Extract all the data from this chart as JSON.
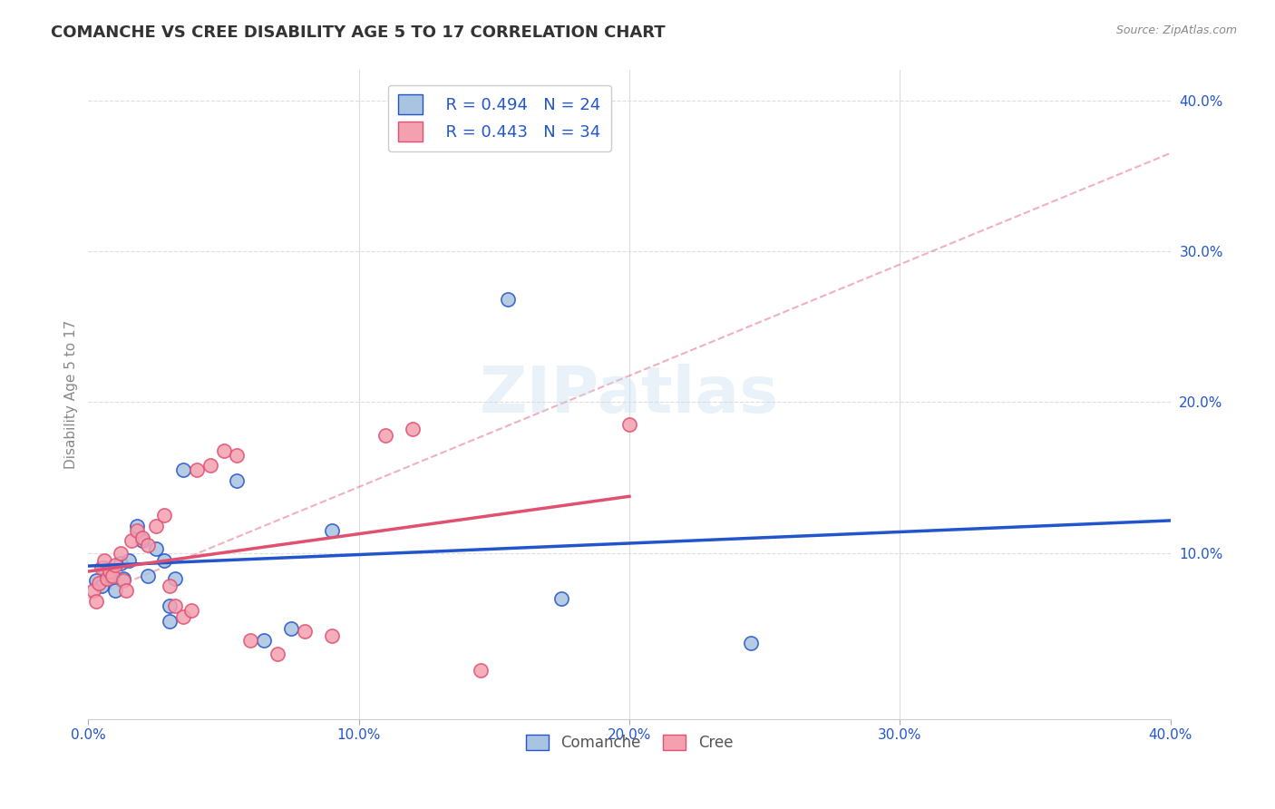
{
  "title": "COMANCHE VS CREE DISABILITY AGE 5 TO 17 CORRELATION CHART",
  "source": "Source: ZipAtlas.com",
  "ylabel": "Disability Age 5 to 17",
  "xmin": 0.0,
  "xmax": 0.4,
  "ymin": -0.01,
  "ymax": 0.42,
  "xticks": [
    0.0,
    0.1,
    0.2,
    0.3,
    0.4
  ],
  "yticks": [
    0.1,
    0.2,
    0.3,
    0.4
  ],
  "xtick_labels": [
    "0.0%",
    "10.0%",
    "20.0%",
    "30.0%",
    "40.0%"
  ],
  "ytick_labels": [
    "10.0%",
    "20.0%",
    "30.0%",
    "40.0%"
  ],
  "comanche_color": "#a8c4e0",
  "cree_color": "#f4a0b0",
  "comanche_line_color": "#2255cc",
  "cree_line_color": "#e05070",
  "legend_r_comanche": "R = 0.494",
  "legend_n_comanche": "N = 24",
  "legend_r_cree": "R = 0.443",
  "legend_n_cree": "N = 34",
  "watermark": "ZIPatlas",
  "comanche_x": [
    0.003,
    0.005,
    0.006,
    0.008,
    0.01,
    0.012,
    0.013,
    0.015,
    0.018,
    0.02,
    0.022,
    0.025,
    0.028,
    0.03,
    0.03,
    0.032,
    0.035,
    0.055,
    0.065,
    0.075,
    0.09,
    0.155,
    0.175,
    0.245
  ],
  "comanche_y": [
    0.082,
    0.078,
    0.09,
    0.085,
    0.075,
    0.093,
    0.083,
    0.095,
    0.118,
    0.108,
    0.085,
    0.103,
    0.095,
    0.065,
    0.055,
    0.083,
    0.155,
    0.148,
    0.042,
    0.05,
    0.115,
    0.268,
    0.07,
    0.04
  ],
  "cree_x": [
    0.002,
    0.003,
    0.004,
    0.005,
    0.006,
    0.007,
    0.008,
    0.009,
    0.01,
    0.012,
    0.013,
    0.014,
    0.016,
    0.018,
    0.02,
    0.022,
    0.025,
    0.028,
    0.03,
    0.032,
    0.035,
    0.038,
    0.04,
    0.045,
    0.05,
    0.055,
    0.06,
    0.07,
    0.08,
    0.09,
    0.11,
    0.12,
    0.145,
    0.2
  ],
  "cree_y": [
    0.075,
    0.068,
    0.08,
    0.09,
    0.095,
    0.083,
    0.088,
    0.085,
    0.092,
    0.1,
    0.082,
    0.075,
    0.108,
    0.115,
    0.11,
    0.105,
    0.118,
    0.125,
    0.078,
    0.065,
    0.058,
    0.062,
    0.155,
    0.158,
    0.168,
    0.165,
    0.042,
    0.033,
    0.048,
    0.045,
    0.178,
    0.182,
    0.022,
    0.185
  ],
  "dashed_line_x": [
    0.0,
    0.4
  ],
  "dashed_line_y": [
    0.07,
    0.365
  ],
  "background_color": "#ffffff",
  "grid_color": "#dddddd"
}
